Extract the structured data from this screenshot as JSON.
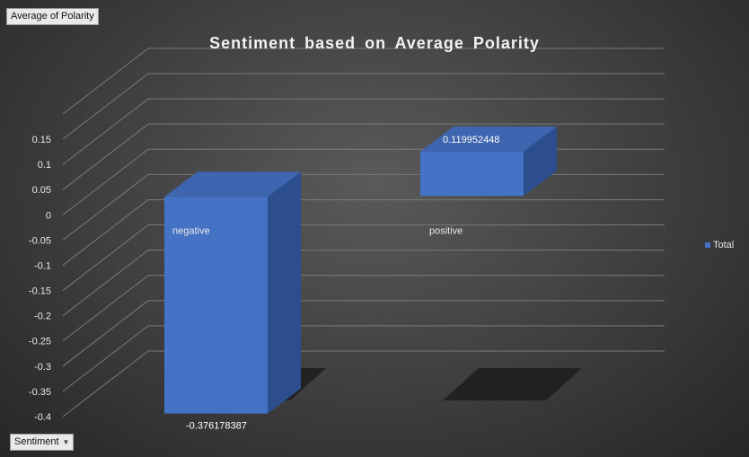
{
  "pivot_fields": {
    "measure": "Average of Polarity",
    "axis": "Sentiment"
  },
  "colors": {
    "bar_front": "#4472c4",
    "bar_side": "#2c4e8e",
    "bar_top": "#3d65b0",
    "gridline": "#7a7a7a",
    "text": "#e8e8e8"
  },
  "chart_data": {
    "type": "bar",
    "title": "Sentiment based on Average Polarity",
    "xlabel": "",
    "ylabel": "",
    "categories": [
      "negative",
      "positive"
    ],
    "series": [
      {
        "name": "Total",
        "values": [
          -0.376178387,
          0.119952448
        ]
      }
    ],
    "data_labels": [
      "-0.376178387",
      "0.119952448"
    ],
    "ylim": [
      -0.4,
      0.15
    ],
    "yticks": [
      0.15,
      0.1,
      0.05,
      0,
      -0.05,
      -0.1,
      -0.15,
      -0.2,
      -0.25,
      -0.3,
      -0.35,
      -0.4
    ],
    "ytick_labels": [
      "0.15",
      "0.1",
      "0.05",
      "0",
      "-0.05",
      "-0.1",
      "-0.15",
      "-0.2",
      "-0.25",
      "-0.3",
      "-0.35",
      "-0.4"
    ],
    "grid": true,
    "legend": "right",
    "style": "3d-column"
  }
}
